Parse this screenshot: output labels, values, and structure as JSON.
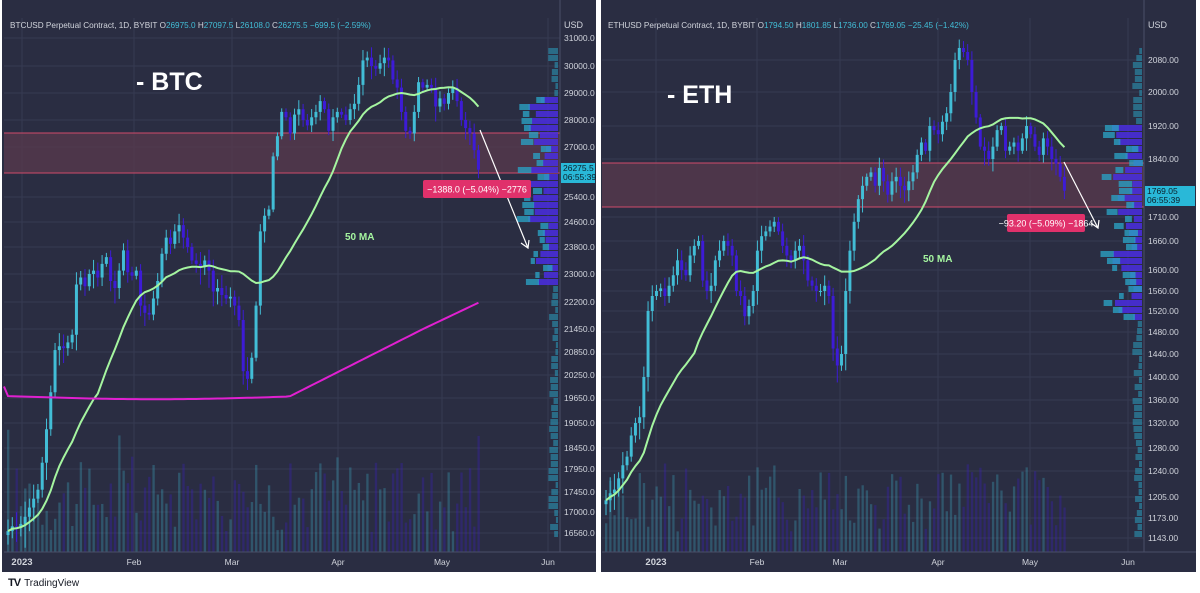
{
  "branding": {
    "logo": "TV",
    "name": "TradingView"
  },
  "colors": {
    "background": "#2a2d42",
    "grid": "#363a52",
    "axis_text": "#d1d4dc",
    "candle_up": "#42bdd6",
    "candle_down": "#3d1bd6",
    "ma50": "#a5f5a0",
    "ma200": "#e020d0",
    "zone_fill": "#5a3a4d",
    "zone_border": "#d04a6a",
    "label_bg": "#e0316b",
    "price_tag_bg": "#29b8d8",
    "volume_profile": "#2a9fc0",
    "volume_profile_alt": "#4a2ee0"
  },
  "chart_data": [
    {
      "type": "candlestick",
      "header": {
        "symbol": "BTCUSD Perpetual Contract, 1D, BYBIT",
        "open_label": "O",
        "open": "26975.0",
        "high_label": "H",
        "high": "27097.5",
        "low_label": "L",
        "low": "26108.0",
        "close_label": "C",
        "close": "26275.5",
        "change": "−699.5 (−2.59%)"
      },
      "big_label": "- BTC",
      "currency": "USD",
      "y_ticks": [
        "31000.0",
        "30000.0",
        "29000.0",
        "28000.0",
        "27000.0",
        "25400.0",
        "24600.0",
        "23800.0",
        "23000.0",
        "22200.0",
        "21450.0",
        "20850.0",
        "20250.0",
        "19650.0",
        "19050.0",
        "18450.0",
        "17950.0",
        "17450.0",
        "17000.0",
        "16560.0"
      ],
      "x_ticks": [
        "2023",
        "Feb",
        "Mar",
        "Apr",
        "May",
        "Jun"
      ],
      "price_tag": {
        "price": "26275.5",
        "countdown": "06:55:39"
      },
      "ma50_label": "50 MA",
      "measure_label": "−1388.0 (−5.04%) −2776",
      "closes": [
        16600,
        16700,
        16680,
        16750,
        16900,
        17100,
        17300,
        17500,
        18100,
        18900,
        19800,
        20900,
        21000,
        20950,
        21100,
        21300,
        22700,
        22900,
        22650,
        23000,
        23100,
        22900,
        23300,
        23500,
        22800,
        22600,
        23100,
        23700,
        23050,
        22950,
        23100,
        22100,
        21900,
        21850,
        22300,
        22800,
        23600,
        24100,
        23900,
        24300,
        24500,
        24100,
        23800,
        23400,
        23300,
        23200,
        23400,
        23100,
        22500,
        22600,
        22400,
        22300,
        22350,
        22100,
        21700,
        20350,
        20150,
        20700,
        22100,
        24300,
        24800,
        25000,
        26700,
        27400,
        28300,
        28100,
        27500,
        28200,
        28400,
        28000,
        27800,
        28100,
        28300,
        28700,
        28400,
        27600,
        28100,
        28300,
        28200,
        28000,
        28400,
        28600,
        29300,
        30200,
        30300,
        30000,
        29900,
        30100,
        30300,
        30200,
        29500,
        29200,
        28300,
        27600,
        27500,
        28300,
        29400,
        29200,
        29300,
        29200,
        28500,
        28800,
        28600,
        29000,
        29200,
        28700,
        28000,
        27700,
        27500,
        26900,
        26275
      ]
    },
    {
      "type": "candlestick",
      "header": {
        "symbol": "ETHUSD Perpetual Contract, 1D, BYBIT",
        "open_label": "O",
        "open": "1794.50",
        "high_label": "H",
        "high": "1801.85",
        "low_label": "L",
        "low": "1736.00",
        "close_label": "C",
        "close": "1769.05",
        "change": "−25.45 (−1.42%)"
      },
      "big_label": "- ETH",
      "currency": "USD",
      "y_ticks": [
        "2080.00",
        "2000.00",
        "1920.00",
        "1840.00",
        "1710.00",
        "1660.00",
        "1600.00",
        "1560.00",
        "1520.00",
        "1480.00",
        "1440.00",
        "1400.00",
        "1360.00",
        "1320.00",
        "1280.00",
        "1240.00",
        "1205.00",
        "1173.00",
        "1143.00"
      ],
      "x_ticks": [
        "2023",
        "Feb",
        "Mar",
        "Apr",
        "May",
        "Jun"
      ],
      "price_tag": {
        "price": "1769.05",
        "countdown": "06:55:39"
      },
      "ma50_label": "50 MA",
      "measure_label": "−93.20 (−5.09%) −1864",
      "closes": [
        1200,
        1210,
        1215,
        1230,
        1250,
        1265,
        1300,
        1320,
        1330,
        1400,
        1520,
        1550,
        1560,
        1565,
        1550,
        1570,
        1590,
        1620,
        1600,
        1590,
        1630,
        1650,
        1660,
        1580,
        1560,
        1570,
        1620,
        1640,
        1660,
        1650,
        1630,
        1560,
        1550,
        1510,
        1530,
        1560,
        1640,
        1670,
        1680,
        1690,
        1700,
        1680,
        1650,
        1630,
        1620,
        1640,
        1650,
        1620,
        1580,
        1570,
        1560,
        1560,
        1570,
        1550,
        1450,
        1420,
        1440,
        1560,
        1640,
        1700,
        1750,
        1780,
        1800,
        1810,
        1780,
        1820,
        1790,
        1760,
        1790,
        1800,
        1780,
        1770,
        1790,
        1810,
        1850,
        1880,
        1860,
        1920,
        1910,
        1900,
        1930,
        1950,
        2000,
        2080,
        2110,
        2100,
        2080,
        2000,
        1940,
        1870,
        1860,
        1840,
        1870,
        1910,
        1920,
        1860,
        1870,
        1880,
        1860,
        1890,
        1920,
        1900,
        1870,
        1850,
        1890,
        1870,
        1840,
        1830,
        1800,
        1769
      ]
    }
  ]
}
